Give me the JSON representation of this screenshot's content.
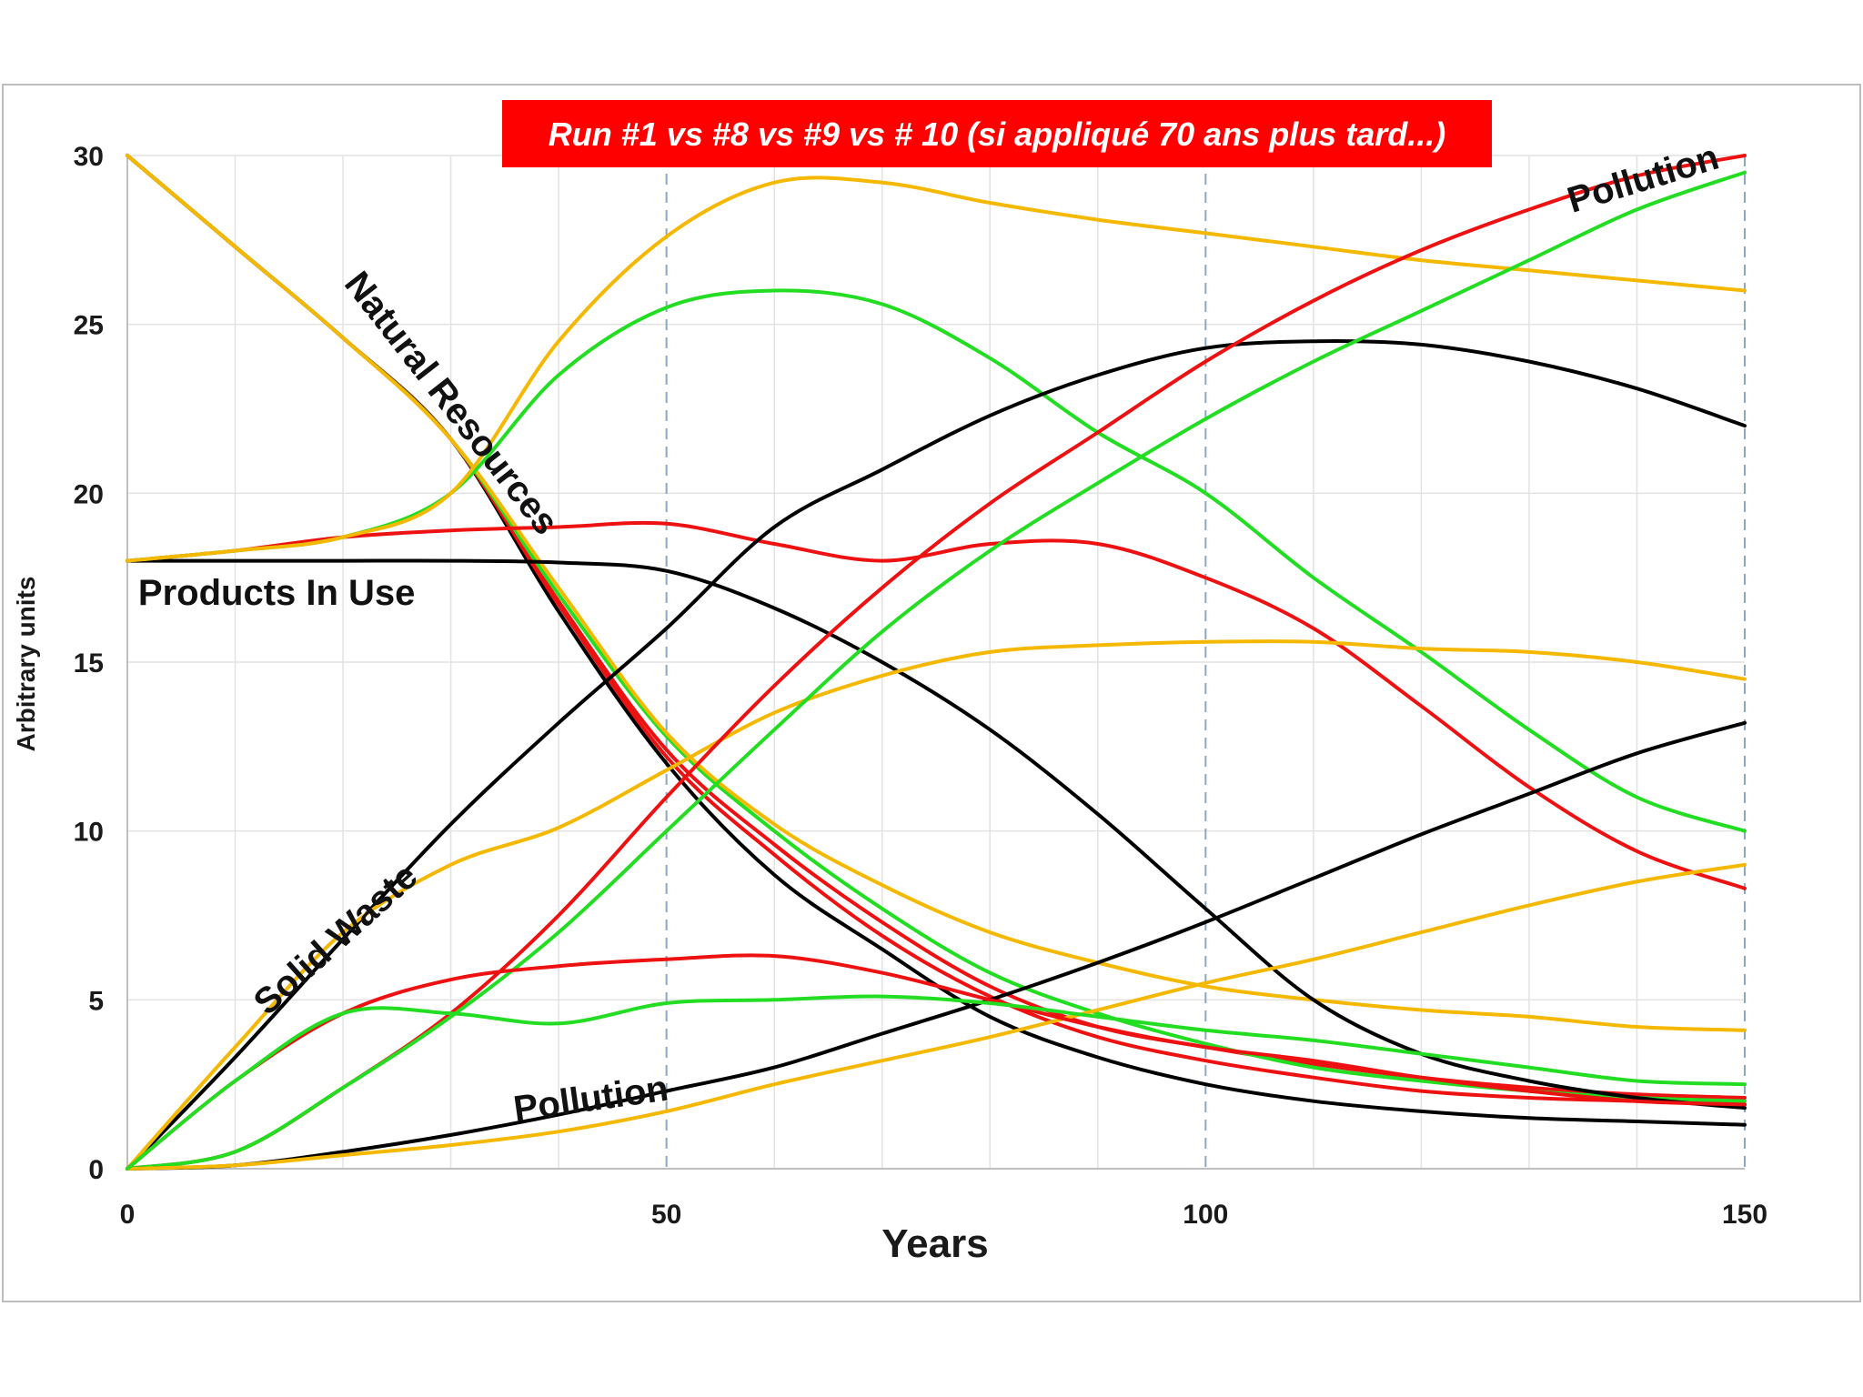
{
  "chart_data": {
    "type": "line",
    "title": "Run #1 vs #8 vs #9 vs # 10 (si appliqué 70 ans plus tard...)",
    "xlabel": "Years",
    "ylabel": "Arbitrary units",
    "xlim": [
      0,
      150
    ],
    "ylim": [
      0,
      30
    ],
    "xticks": [
      0,
      50,
      100,
      150
    ],
    "yticks": [
      0,
      5,
      10,
      15,
      20,
      25,
      30
    ],
    "grid": true,
    "colors": {
      "title_bg": "#ff0000",
      "grid": "#e2e2e2",
      "dashed_grid": "#8aa8c4",
      "frame": "#bdbdbd"
    },
    "annotations": [
      {
        "text": "Natural Resources",
        "x": 20,
        "y": 26.2,
        "angle": 52
      },
      {
        "text": "Products In Use",
        "x": 1,
        "y": 16.7,
        "angle": 0
      },
      {
        "text": "Solid Waste",
        "x": 13,
        "y": 4.5,
        "angle": -42
      },
      {
        "text": "Pollution",
        "x": 36,
        "y": 1.4,
        "angle": -8
      },
      {
        "text": "Pollution",
        "x": 134,
        "y": 28.3,
        "angle": -17
      }
    ],
    "series": [
      {
        "name": "Natural Resources (black)",
        "color": "#000000",
        "x": [
          0,
          10,
          20,
          30,
          40,
          50,
          60,
          70,
          80,
          90,
          100,
          110,
          120,
          130,
          140,
          150
        ],
        "y": [
          30,
          27.3,
          24.6,
          21.6,
          16.5,
          12,
          8.7,
          6.5,
          4.5,
          3.3,
          2.5,
          2.0,
          1.7,
          1.5,
          1.4,
          1.3
        ]
      },
      {
        "name": "Natural Resources (red 1)",
        "color": "#ee1111",
        "x": [
          0,
          10,
          20,
          30,
          40,
          50,
          60,
          70,
          80,
          90,
          100,
          110,
          120,
          130,
          140,
          150
        ],
        "y": [
          30,
          27.3,
          24.6,
          21.6,
          16.7,
          12.2,
          9.3,
          6.9,
          5.1,
          3.9,
          3.2,
          2.7,
          2.3,
          2.1,
          2.0,
          1.9
        ]
      },
      {
        "name": "Natural Resources (red 2)",
        "color": "#ee1111",
        "x": [
          0,
          10,
          20,
          30,
          40,
          50,
          60,
          70,
          80,
          90,
          100,
          110,
          120,
          130,
          140,
          150
        ],
        "y": [
          30,
          27.3,
          24.6,
          21.6,
          16.8,
          12.4,
          9.6,
          7.3,
          5.4,
          4.2,
          3.6,
          3.1,
          2.7,
          2.4,
          2.2,
          2.1
        ]
      },
      {
        "name": "Natural Resources (green)",
        "color": "#22dd22",
        "x": [
          0,
          10,
          20,
          30,
          40,
          50,
          60,
          70,
          80,
          90,
          100,
          110,
          120,
          130,
          140,
          150
        ],
        "y": [
          30,
          27.3,
          24.6,
          21.6,
          17.0,
          12.8,
          10.0,
          7.7,
          5.8,
          4.6,
          3.7,
          3.0,
          2.6,
          2.3,
          2.1,
          2.0
        ]
      },
      {
        "name": "Natural Resources (orange)",
        "color": "#f5b800",
        "x": [
          0,
          10,
          20,
          30,
          40,
          50,
          60,
          70,
          80,
          90,
          100,
          110,
          120,
          130,
          140,
          150
        ],
        "y": [
          30,
          27.3,
          24.6,
          21.6,
          17.2,
          12.9,
          10.2,
          8.4,
          7.0,
          6.1,
          5.4,
          5.0,
          4.7,
          4.5,
          4.2,
          4.1
        ]
      },
      {
        "name": "Products In Use (black)",
        "color": "#000000",
        "x": [
          0,
          10,
          20,
          30,
          40,
          50,
          60,
          70,
          80,
          90,
          100,
          110,
          120,
          130,
          140,
          150
        ],
        "y": [
          18,
          18,
          18,
          18,
          17.95,
          17.7,
          16.6,
          15,
          13,
          10.5,
          7.7,
          5,
          3.4,
          2.6,
          2.1,
          1.8
        ]
      },
      {
        "name": "Products In Use (red)",
        "color": "#ee1111",
        "x": [
          0,
          10,
          20,
          30,
          40,
          50,
          60,
          70,
          80,
          90,
          100,
          110,
          120,
          130,
          140,
          150
        ],
        "y": [
          18,
          18.3,
          18.7,
          18.9,
          19.0,
          19.1,
          18.5,
          18.0,
          18.5,
          18.5,
          17.5,
          16.0,
          13.7,
          11.3,
          9.4,
          8.3
        ]
      },
      {
        "name": "Products In Use (green)",
        "color": "#22dd22",
        "x": [
          0,
          10,
          20,
          30,
          40,
          50,
          60,
          70,
          80,
          90,
          100,
          110,
          120,
          130,
          140,
          150
        ],
        "y": [
          18,
          18.3,
          18.7,
          20,
          23.5,
          25.5,
          26.0,
          25.6,
          24.0,
          21.8,
          20.0,
          17.5,
          15.3,
          13.0,
          11.0,
          10.0
        ]
      },
      {
        "name": "Products In Use (orange)",
        "color": "#f5b800",
        "x": [
          0,
          10,
          20,
          30,
          40,
          50,
          60,
          70,
          80,
          90,
          100,
          110,
          120,
          130,
          140,
          150
        ],
        "y": [
          18,
          18.3,
          18.7,
          20,
          24.5,
          27.6,
          29.2,
          29.2,
          28.6,
          28.1,
          27.7,
          27.3,
          26.9,
          26.6,
          26.3,
          26.0
        ]
      },
      {
        "name": "Solid Waste (black)",
        "color": "#000000",
        "x": [
          0,
          10,
          20,
          30,
          40,
          50,
          60,
          70,
          80,
          90,
          100,
          110,
          120,
          130,
          140,
          150
        ],
        "y": [
          0,
          3.3,
          6.8,
          10.2,
          13.2,
          16.0,
          19.0,
          20.7,
          22.3,
          23.5,
          24.3,
          24.5,
          24.4,
          23.9,
          23.1,
          22.0
        ]
      },
      {
        "name": "Solid Waste (orange)",
        "color": "#f5b800",
        "x": [
          0,
          10,
          20,
          30,
          40,
          50,
          60,
          70,
          80,
          90,
          100,
          110,
          120,
          130,
          140,
          150
        ],
        "y": [
          0,
          3.6,
          7.0,
          9.0,
          10.1,
          11.8,
          13.5,
          14.6,
          15.3,
          15.5,
          15.6,
          15.6,
          15.4,
          15.3,
          15.0,
          14.5
        ]
      },
      {
        "name": "Solid Waste (red)",
        "color": "#ee1111",
        "x": [
          0,
          10,
          20,
          30,
          40,
          50,
          60,
          70,
          80,
          90,
          100,
          110,
          120,
          130,
          140,
          150
        ],
        "y": [
          0,
          0.5,
          2.4,
          4.6,
          7.5,
          11.0,
          14.3,
          17.2,
          19.7,
          21.8,
          23.9,
          25.7,
          27.2,
          28.4,
          29.4,
          30.0
        ]
      },
      {
        "name": "Solid Waste (green)",
        "color": "#22dd22",
        "x": [
          0,
          10,
          20,
          30,
          40,
          50,
          60,
          70,
          80,
          90,
          100,
          110,
          120,
          130,
          140,
          150
        ],
        "y": [
          0,
          0.5,
          2.4,
          4.5,
          7.0,
          10.0,
          13.0,
          15.9,
          18.3,
          20.3,
          22.2,
          23.9,
          25.4,
          26.9,
          28.4,
          29.5
        ]
      },
      {
        "name": "Pollution (black)",
        "color": "#000000",
        "x": [
          0,
          10,
          20,
          30,
          40,
          50,
          60,
          70,
          80,
          90,
          100,
          110,
          120,
          130,
          140,
          150
        ],
        "y": [
          0,
          0.1,
          0.5,
          1.0,
          1.6,
          2.3,
          3.0,
          4.0,
          5.0,
          6.1,
          7.3,
          8.6,
          9.9,
          11.1,
          12.3,
          13.2
        ]
      },
      {
        "name": "Pollution (orange)",
        "color": "#f5b800",
        "x": [
          0,
          10,
          20,
          30,
          40,
          50,
          60,
          70,
          80,
          90,
          100,
          110,
          120,
          130,
          140,
          150
        ],
        "y": [
          0,
          0.1,
          0.4,
          0.7,
          1.1,
          1.7,
          2.5,
          3.2,
          3.9,
          4.7,
          5.5,
          6.2,
          7.0,
          7.8,
          8.5,
          9.0
        ]
      },
      {
        "name": "Pollution (red)",
        "color": "#ee1111",
        "x": [
          0,
          10,
          20,
          30,
          40,
          50,
          60,
          70,
          80,
          90,
          100,
          110,
          120,
          130,
          140,
          150
        ],
        "y": [
          0,
          2.6,
          4.6,
          5.6,
          6.0,
          6.2,
          6.3,
          5.8,
          5.0,
          4.2,
          3.6,
          3.2,
          2.7,
          2.3,
          2.0,
          1.9
        ]
      },
      {
        "name": "Pollution (green)",
        "color": "#22dd22",
        "x": [
          0,
          10,
          20,
          30,
          40,
          50,
          60,
          70,
          80,
          90,
          100,
          110,
          120,
          130,
          140,
          150
        ],
        "y": [
          0,
          2.6,
          4.6,
          4.6,
          4.3,
          4.9,
          5.0,
          5.1,
          4.9,
          4.5,
          4.1,
          3.8,
          3.4,
          3.0,
          2.6,
          2.5
        ]
      }
    ]
  }
}
